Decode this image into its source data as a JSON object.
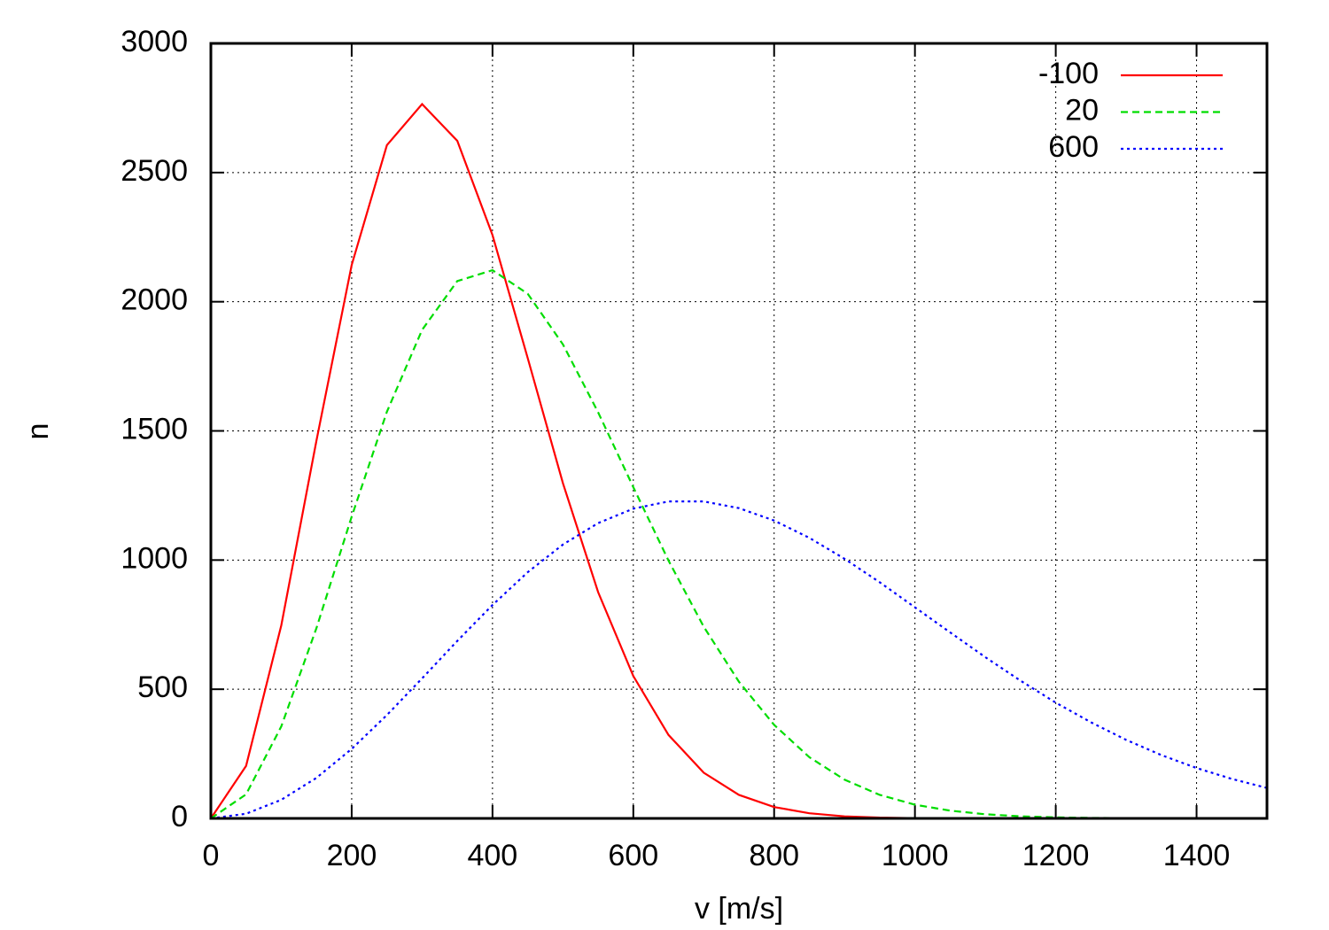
{
  "chart_data": {
    "type": "line",
    "xlabel": "v [m/s]",
    "ylabel": "n",
    "x": [
      0,
      50,
      100,
      150,
      200,
      250,
      300,
      350,
      400,
      450,
      500,
      550,
      600,
      650,
      700,
      750,
      800,
      850,
      900,
      950,
      1000,
      1050,
      1100,
      1150,
      1200,
      1250,
      1300,
      1350,
      1400,
      1450,
      1500
    ],
    "series": [
      {
        "name": "-100",
        "color": "#ff0000",
        "dash": "solid",
        "values": [
          0,
          203,
          747,
          1463,
          2142,
          2606,
          2765,
          2623,
          2258,
          1782,
          1298,
          876,
          551,
          323,
          177,
          91,
          44,
          20,
          8,
          3,
          1,
          0,
          0,
          0,
          0,
          0,
          0,
          0,
          0,
          0,
          0
        ]
      },
      {
        "name": "20",
        "color": "#00dd00",
        "dash": "dashed",
        "values": [
          0,
          93,
          356,
          737,
          1168,
          1574,
          1891,
          2080,
          2122,
          2031,
          1835,
          1572,
          1282,
          998,
          742,
          529,
          362,
          237,
          150,
          91,
          53,
          30,
          16,
          8,
          4,
          2,
          1,
          0,
          0,
          0,
          0
        ]
      },
      {
        "name": "600",
        "color": "#0000ff",
        "dash": "dotted",
        "values": [
          0,
          18,
          72,
          157,
          269,
          400,
          542,
          687,
          826,
          953,
          1060,
          1143,
          1199,
          1227,
          1227,
          1201,
          1153,
          1086,
          1005,
          914,
          817,
          720,
          624,
          533,
          448,
          372,
          304,
          245,
          195,
          153,
          118
        ]
      }
    ],
    "xlim": [
      0,
      1500
    ],
    "xticks": [
      0,
      200,
      400,
      600,
      800,
      1000,
      1200,
      1400
    ],
    "ylim": [
      0,
      3000
    ],
    "yticks": [
      0,
      500,
      1000,
      1500,
      2000,
      2500,
      3000
    ],
    "grid": true,
    "legend": "top-right"
  }
}
